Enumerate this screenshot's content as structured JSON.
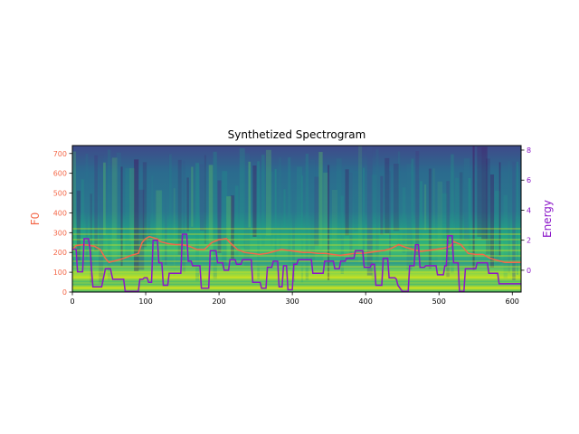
{
  "chart_data": {
    "type": "line",
    "title": "Synthetized Spectrogram",
    "xlabel": "",
    "ylabel_left": "F0",
    "ylabel_right": "Energy",
    "xlim": [
      0,
      612
    ],
    "ylim_left": [
      0,
      740
    ],
    "ylim_right": [
      -1.45,
      8.3
    ],
    "x_ticks": [
      0,
      100,
      200,
      300,
      400,
      500,
      600
    ],
    "y_ticks_left": [
      0,
      100,
      200,
      300,
      400,
      500,
      600,
      700
    ],
    "y_ticks_right": [
      0,
      2,
      4,
      6,
      8
    ],
    "background": "spectrogram (viridis)",
    "grid": false,
    "series": [
      {
        "name": "F0",
        "axis": "left",
        "color": "#f4694a",
        "points": [
          [
            0,
            215
          ],
          [
            5,
            235
          ],
          [
            15,
            240
          ],
          [
            25,
            235
          ],
          [
            30,
            232
          ],
          [
            38,
            215
          ],
          [
            45,
            170
          ],
          [
            50,
            150
          ],
          [
            60,
            160
          ],
          [
            70,
            170
          ],
          [
            80,
            185
          ],
          [
            90,
            195
          ],
          [
            95,
            250
          ],
          [
            100,
            270
          ],
          [
            105,
            280
          ],
          [
            110,
            275
          ],
          [
            115,
            270
          ],
          [
            120,
            255
          ],
          [
            130,
            245
          ],
          [
            140,
            240
          ],
          [
            150,
            240
          ],
          [
            160,
            230
          ],
          [
            170,
            215
          ],
          [
            180,
            215
          ],
          [
            190,
            250
          ],
          [
            200,
            265
          ],
          [
            210,
            270
          ],
          [
            215,
            250
          ],
          [
            225,
            215
          ],
          [
            235,
            200
          ],
          [
            245,
            195
          ],
          [
            255,
            190
          ],
          [
            265,
            195
          ],
          [
            275,
            205
          ],
          [
            285,
            215
          ],
          [
            295,
            210
          ],
          [
            305,
            205
          ],
          [
            315,
            200
          ],
          [
            325,
            200
          ],
          [
            335,
            195
          ],
          [
            345,
            195
          ],
          [
            355,
            190
          ],
          [
            365,
            185
          ],
          [
            375,
            190
          ],
          [
            385,
            195
          ],
          [
            395,
            195
          ],
          [
            405,
            200
          ],
          [
            415,
            205
          ],
          [
            425,
            210
          ],
          [
            435,
            220
          ],
          [
            445,
            240
          ],
          [
            455,
            225
          ],
          [
            465,
            215
          ],
          [
            475,
            205
          ],
          [
            485,
            210
          ],
          [
            495,
            215
          ],
          [
            505,
            220
          ],
          [
            515,
            230
          ],
          [
            520,
            255
          ],
          [
            530,
            240
          ],
          [
            540,
            195
          ],
          [
            550,
            190
          ],
          [
            560,
            190
          ],
          [
            570,
            170
          ],
          [
            580,
            160
          ],
          [
            590,
            150
          ],
          [
            600,
            150
          ],
          [
            612,
            150
          ]
        ]
      },
      {
        "name": "Energy",
        "axis": "right",
        "color": "#8b16c9",
        "points": [
          [
            0,
            1.4
          ],
          [
            5,
            1.4
          ],
          [
            7,
            -0.1
          ],
          [
            14,
            -0.1
          ],
          [
            16,
            2.1
          ],
          [
            22,
            2.1
          ],
          [
            24,
            1.4
          ],
          [
            28,
            -1.1
          ],
          [
            40,
            -1.1
          ],
          [
            45,
            0.1
          ],
          [
            52,
            0.1
          ],
          [
            55,
            -0.6
          ],
          [
            70,
            -0.6
          ],
          [
            72,
            -1.4
          ],
          [
            90,
            -1.4
          ],
          [
            92,
            -0.6
          ],
          [
            96,
            -0.6
          ],
          [
            98,
            -0.5
          ],
          [
            102,
            -0.5
          ],
          [
            104,
            -0.8
          ],
          [
            108,
            -0.8
          ],
          [
            110,
            2.0
          ],
          [
            116,
            2.0
          ],
          [
            118,
            0.5
          ],
          [
            122,
            0.5
          ],
          [
            124,
            -1.0
          ],
          [
            130,
            -1.0
          ],
          [
            132,
            -0.2
          ],
          [
            148,
            -0.2
          ],
          [
            150,
            2.4
          ],
          [
            156,
            2.4
          ],
          [
            158,
            0.6
          ],
          [
            162,
            0.6
          ],
          [
            164,
            0.3
          ],
          [
            174,
            0.3
          ],
          [
            176,
            -1.2
          ],
          [
            186,
            -1.2
          ],
          [
            188,
            1.3
          ],
          [
            196,
            1.3
          ],
          [
            198,
            0.5
          ],
          [
            205,
            0.5
          ],
          [
            207,
            0.0
          ],
          [
            213,
            0.0
          ],
          [
            215,
            0.7
          ],
          [
            222,
            0.7
          ],
          [
            224,
            0.4
          ],
          [
            230,
            0.4
          ],
          [
            232,
            0.7
          ],
          [
            244,
            0.7
          ],
          [
            246,
            -0.8
          ],
          [
            256,
            -0.8
          ],
          [
            258,
            -1.2
          ],
          [
            264,
            -1.2
          ],
          [
            266,
            0.2
          ],
          [
            272,
            0.2
          ],
          [
            274,
            0.6
          ],
          [
            280,
            0.6
          ],
          [
            282,
            -1.1
          ],
          [
            286,
            -1.1
          ],
          [
            288,
            0.3
          ],
          [
            292,
            0.3
          ],
          [
            294,
            -1.3
          ],
          [
            300,
            -1.3
          ],
          [
            302,
            0.4
          ],
          [
            306,
            0.4
          ],
          [
            308,
            0.7
          ],
          [
            326,
            0.7
          ],
          [
            328,
            -0.2
          ],
          [
            342,
            -0.2
          ],
          [
            344,
            0.6
          ],
          [
            356,
            0.6
          ],
          [
            358,
            0.1
          ],
          [
            364,
            0.1
          ],
          [
            366,
            0.6
          ],
          [
            372,
            0.6
          ],
          [
            374,
            0.8
          ],
          [
            384,
            0.8
          ],
          [
            386,
            1.3
          ],
          [
            396,
            1.3
          ],
          [
            398,
            0.2
          ],
          [
            406,
            0.2
          ],
          [
            408,
            0.4
          ],
          [
            412,
            0.4
          ],
          [
            414,
            -1.0
          ],
          [
            422,
            -1.0
          ],
          [
            424,
            0.8
          ],
          [
            430,
            0.8
          ],
          [
            432,
            -0.5
          ],
          [
            440,
            -0.5
          ],
          [
            442,
            -0.6
          ],
          [
            444,
            -1.0
          ],
          [
            450,
            -1.4
          ],
          [
            458,
            -1.4
          ],
          [
            460,
            0.3
          ],
          [
            466,
            0.3
          ],
          [
            468,
            1.7
          ],
          [
            472,
            1.7
          ],
          [
            474,
            0.2
          ],
          [
            480,
            0.2
          ],
          [
            482,
            0.3
          ],
          [
            496,
            0.3
          ],
          [
            498,
            -0.3
          ],
          [
            506,
            -0.3
          ],
          [
            508,
            0.3
          ],
          [
            510,
            0.3
          ],
          [
            512,
            2.3
          ],
          [
            518,
            2.3
          ],
          [
            520,
            0.5
          ],
          [
            526,
            0.5
          ],
          [
            528,
            -1.4
          ],
          [
            534,
            -1.4
          ],
          [
            536,
            0.1
          ],
          [
            550,
            0.1
          ],
          [
            552,
            0.5
          ],
          [
            566,
            0.5
          ],
          [
            568,
            -0.2
          ],
          [
            580,
            -0.2
          ],
          [
            582,
            -0.9
          ],
          [
            612,
            -0.9
          ]
        ]
      }
    ]
  }
}
